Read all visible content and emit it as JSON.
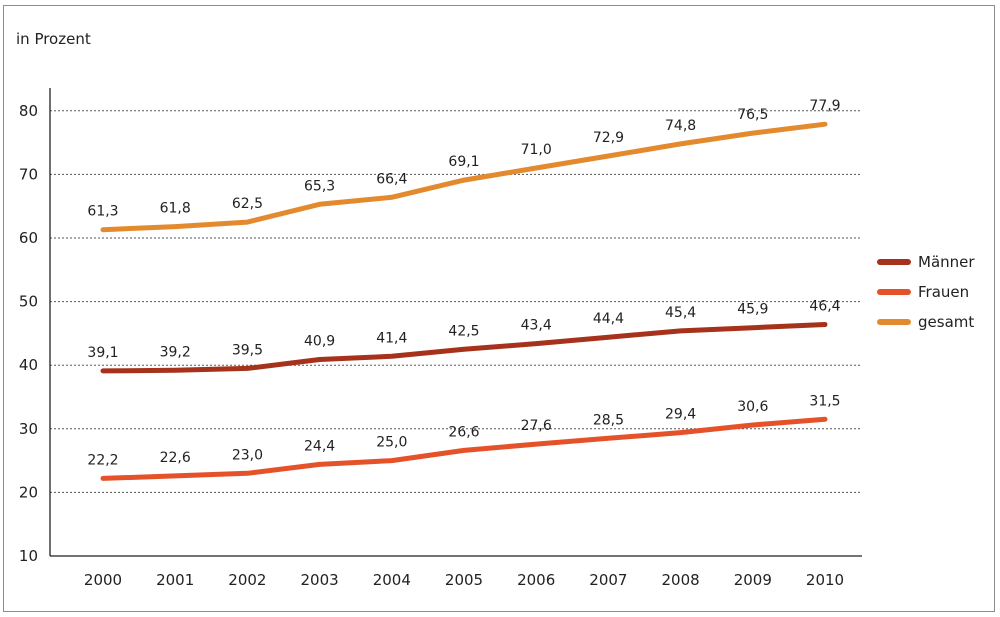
{
  "chart_data": {
    "type": "line",
    "unit_label": "in Prozent",
    "x": [
      "2000",
      "2001",
      "2002",
      "2003",
      "2004",
      "2005",
      "2006",
      "2007",
      "2008",
      "2009",
      "2010"
    ],
    "ylim": [
      10,
      85
    ],
    "yticks": [
      10,
      20,
      30,
      40,
      50,
      60,
      70,
      80
    ],
    "grid": "horizontal dashed",
    "legend_position": "right",
    "series": [
      {
        "name": "Männer",
        "color": "#a6321c",
        "values": [
          39.1,
          39.2,
          39.5,
          40.9,
          41.4,
          42.5,
          43.4,
          44.4,
          45.4,
          45.9,
          46.4
        ],
        "labels": [
          "39,1",
          "39,2",
          "39,5",
          "40,9",
          "41,4",
          "42,5",
          "43,4",
          "44,4",
          "45,4",
          "45,9",
          "46,4"
        ]
      },
      {
        "name": "Frauen",
        "color": "#e5522a",
        "values": [
          22.2,
          22.6,
          23.0,
          24.4,
          25.0,
          26.6,
          27.6,
          28.5,
          29.4,
          30.6,
          31.5
        ],
        "labels": [
          "22,2",
          "22,6",
          "23,0",
          "24,4",
          "25,0",
          "26,6",
          "27,6",
          "28,5",
          "29,4",
          "30,6",
          "31,5"
        ]
      },
      {
        "name": "gesamt",
        "color": "#e38a2e",
        "values": [
          61.3,
          61.8,
          62.5,
          65.3,
          66.4,
          69.1,
          71.0,
          72.9,
          74.8,
          76.5,
          77.9
        ],
        "labels": [
          "61,3",
          "61,8",
          "62,5",
          "65,3",
          "66,4",
          "69,1",
          "71,0",
          "72,9",
          "74,8",
          "76,5",
          "77,9"
        ]
      }
    ]
  }
}
